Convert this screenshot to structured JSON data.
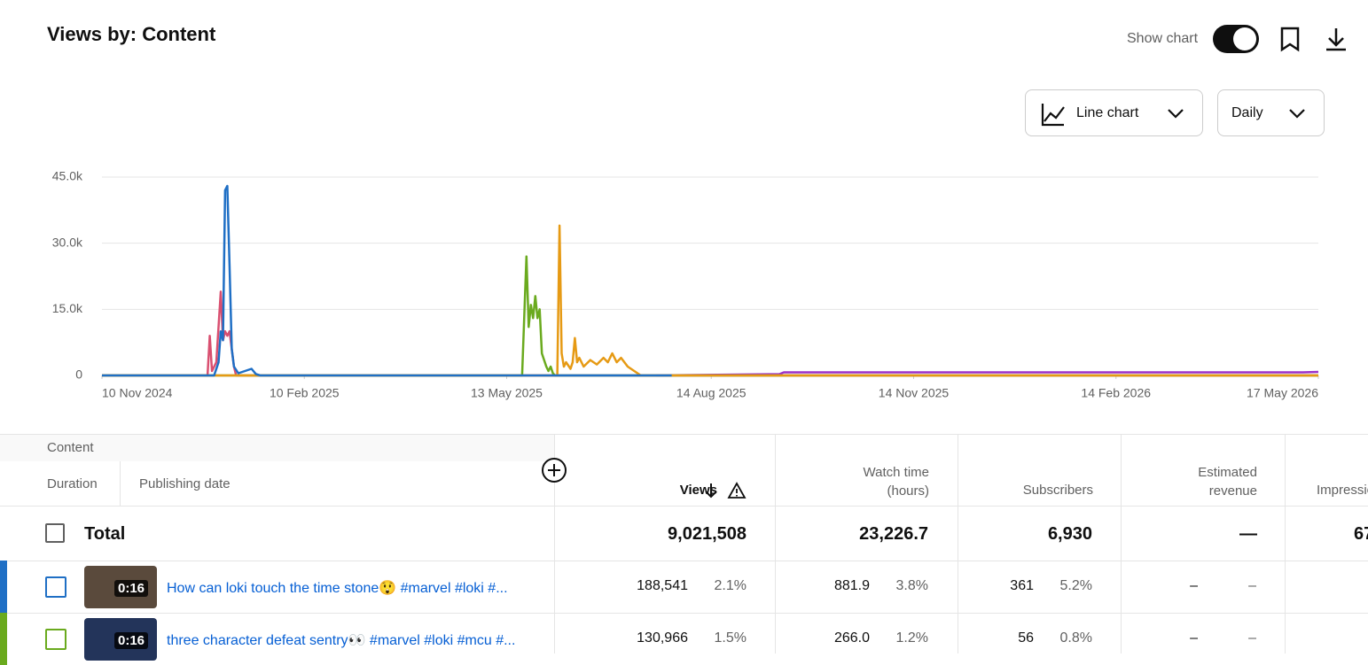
{
  "header": {
    "title": "Views by: Content",
    "show_chart": "Show chart",
    "chart_type": "Line chart",
    "interval": "Daily"
  },
  "chart_data": {
    "type": "line",
    "xlim": [
      "2024-11-10",
      "2026-05-17"
    ],
    "xticks": [
      {
        "value": "2024-11-10",
        "label": "10 Nov 2024"
      },
      {
        "value": "2025-02-10",
        "label": "10 Feb 2025"
      },
      {
        "value": "2025-05-13",
        "label": "13 May 2025"
      },
      {
        "value": "2025-08-14",
        "label": "14 Aug 2025"
      },
      {
        "value": "2025-11-14",
        "label": "14 Nov 2025"
      },
      {
        "value": "2026-02-14",
        "label": "14 Feb 2026"
      },
      {
        "value": "2026-05-17",
        "label": "17 May 2026"
      }
    ],
    "ylim": [
      0,
      45000
    ],
    "yticks": [
      0,
      {
        "value": 15000,
        "label": "15.0k"
      },
      {
        "value": 30000,
        "label": "30.0k"
      },
      {
        "value": 45000,
        "label": "45.0k"
      }
    ],
    "grid": true,
    "series": [
      {
        "color": "#d94f70",
        "x": [
          "2024-11-10",
          "2024-12-28",
          "2024-12-29",
          "2024-12-30",
          "2025-01-01",
          "2025-01-03",
          "2025-01-04",
          "2025-01-05",
          "2025-01-06",
          "2025-01-07",
          "2025-01-08",
          "2025-01-09",
          "2025-01-10",
          "2026-05-17"
        ],
        "values": [
          0,
          0,
          9000,
          1000,
          3000,
          19000,
          8000,
          10000,
          9000,
          10000,
          6000,
          2000,
          0,
          0
        ]
      },
      {
        "color": "#9b30c9",
        "x": [
          "2025-07-20",
          "2025-09-14",
          "2025-09-16",
          "2026-05-10",
          "2026-05-17"
        ],
        "values": [
          0,
          300,
          700,
          700,
          800
        ]
      },
      {
        "color": "#6aaa1e",
        "x": [
          "2024-11-10",
          "2025-05-20",
          "2025-05-22",
          "2025-05-23",
          "2025-05-24",
          "2025-05-25",
          "2025-05-26",
          "2025-05-27",
          "2025-05-28",
          "2025-05-29",
          "2025-05-31",
          "2025-06-01",
          "2025-06-02",
          "2025-06-03",
          "2025-06-04",
          "2026-05-17"
        ],
        "values": [
          0,
          0,
          27000,
          11000,
          16000,
          13000,
          18000,
          13000,
          15000,
          5000,
          2000,
          1000,
          2000,
          500,
          0,
          0
        ]
      },
      {
        "color": "#e69a14",
        "x": [
          "2024-11-10",
          "2025-06-05",
          "2025-06-06",
          "2025-06-07",
          "2025-06-08",
          "2025-06-09",
          "2025-06-11",
          "2025-06-12",
          "2025-06-13",
          "2025-06-14",
          "2025-06-15",
          "2025-06-17",
          "2025-06-20",
          "2025-06-23",
          "2025-06-26",
          "2025-06-28",
          "2025-06-30",
          "2025-07-02",
          "2025-07-04",
          "2025-07-07",
          "2025-07-10",
          "2025-07-13",
          "2026-05-17"
        ],
        "values": [
          0,
          0,
          34000,
          5000,
          2000,
          3000,
          1500,
          3000,
          8500,
          3000,
          4000,
          2000,
          3500,
          2500,
          4000,
          3000,
          5000,
          3000,
          4000,
          2000,
          1000,
          0,
          0
        ]
      },
      {
        "color": "#1f6fc5",
        "x": [
          "2024-11-10",
          "2024-12-31",
          "2025-01-02",
          "2025-01-03",
          "2025-01-04",
          "2025-01-05",
          "2025-01-06",
          "2025-01-07",
          "2025-01-08",
          "2025-01-09",
          "2025-01-11",
          "2025-01-14",
          "2025-01-17",
          "2025-01-19",
          "2025-01-21",
          "2025-07-27"
        ],
        "values": [
          0,
          0,
          3000,
          10000,
          8000,
          42000,
          43000,
          25000,
          6000,
          2000,
          500,
          1000,
          1500,
          300,
          0,
          0
        ]
      }
    ]
  },
  "table": {
    "columns": {
      "content": "Content",
      "duration": "Duration",
      "publishing_date": "Publishing date",
      "views": "Views",
      "watch_time": "Watch time (hours)",
      "subscribers": "Subscribers",
      "revenue": "Estimated revenue",
      "impressions": "Impressions"
    },
    "total": {
      "label": "Total",
      "views": "9,021,508",
      "watch_time": "23,226.7",
      "subscribers": "6,930",
      "revenue": "—",
      "impressions": "67"
    },
    "rows": [
      {
        "title": "How can loki touch the time stone😲  #marvel #loki #...",
        "duration": "0:16",
        "views": "188,541",
        "views_pct": "2.1%",
        "watch_time": "881.9",
        "watch_pct": "3.8%",
        "subscribers": "361",
        "subs_pct": "5.2%",
        "revenue": "–",
        "revenue_pct": "–"
      },
      {
        "title": "three character defeat sentry👀  #marvel #loki #mcu #...",
        "duration": "0:16",
        "views": "130,966",
        "views_pct": "1.5%",
        "watch_time": "266.0",
        "watch_pct": "1.2%",
        "subscribers": "56",
        "subs_pct": "0.8%",
        "revenue": "–",
        "revenue_pct": "–"
      }
    ]
  }
}
